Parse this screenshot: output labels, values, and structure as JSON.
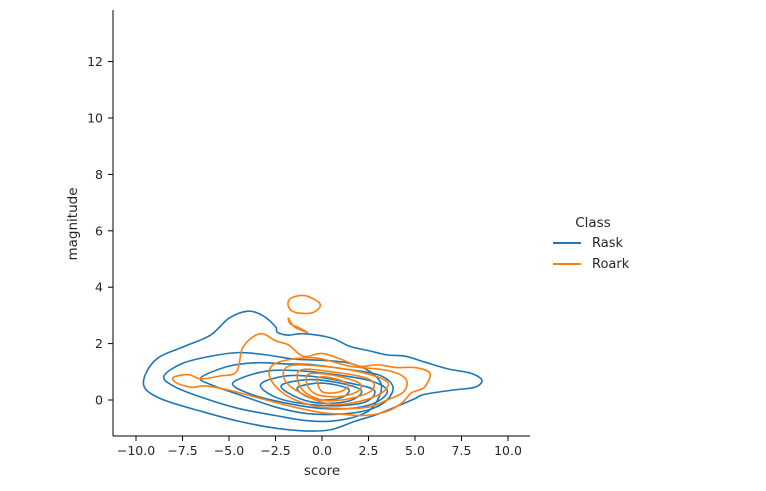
{
  "chart_data": {
    "type": "contour",
    "xlabel": "score",
    "ylabel": "magnitude",
    "xlim": [
      -11.2,
      11.2
    ],
    "ylim": [
      -1.3,
      13.8
    ],
    "x_ticks": [
      -10.0,
      -7.5,
      -5.0,
      -2.5,
      0.0,
      2.5,
      5.0,
      7.5,
      10.0
    ],
    "x_tick_labels": [
      "−10.0",
      "−7.5",
      "−5.0",
      "−2.5",
      "0.0",
      "2.5",
      "5.0",
      "7.5",
      "10.0"
    ],
    "y_ticks": [
      0,
      2,
      4,
      6,
      8,
      10,
      12
    ],
    "y_tick_labels": [
      "0",
      "2",
      "4",
      "6",
      "8",
      "10",
      "12"
    ],
    "grid": false,
    "legend": {
      "title": "Class",
      "placement": "right",
      "entries": [
        {
          "label": "Rask",
          "color": "#1f77b4"
        },
        {
          "label": "Roark",
          "color": "#ff7f0e"
        }
      ]
    },
    "series": [
      {
        "name": "Rask",
        "color": "#1f77b4",
        "contours": [
          [
            [
              -9.5,
              0.9
            ],
            [
              -8.8,
              1.5
            ],
            [
              -7.4,
              1.9
            ],
            [
              -6,
              2.3
            ],
            [
              -5,
              2.9
            ],
            [
              -4,
              3.15
            ],
            [
              -3.2,
              3.0
            ],
            [
              -2.5,
              2.6
            ],
            [
              -2.4,
              2.4
            ],
            [
              -1.8,
              2.3
            ],
            [
              -1,
              2.35
            ],
            [
              0.5,
              2.2
            ],
            [
              1.5,
              1.9
            ],
            [
              2.5,
              1.75
            ],
            [
              3.5,
              1.6
            ],
            [
              4.5,
              1.55
            ],
            [
              5.5,
              1.35
            ],
            [
              6.8,
              1.1
            ],
            [
              8,
              0.95
            ],
            [
              8.6,
              0.7
            ],
            [
              8.2,
              0.45
            ],
            [
              7,
              0.35
            ],
            [
              5.5,
              0.2
            ],
            [
              5,
              0.05
            ],
            [
              4.3,
              -0.15
            ],
            [
              3,
              -0.5
            ],
            [
              1.8,
              -0.75
            ],
            [
              0.5,
              -1.05
            ],
            [
              -0.8,
              -1.1
            ],
            [
              -2.5,
              -1.0
            ],
            [
              -4.5,
              -0.75
            ],
            [
              -6.5,
              -0.4
            ],
            [
              -8.5,
              0.0
            ],
            [
              -9.5,
              0.4
            ]
          ],
          [
            [
              -8.5,
              0.85
            ],
            [
              -7.5,
              1.3
            ],
            [
              -6,
              1.55
            ],
            [
              -4.5,
              1.68
            ],
            [
              -3,
              1.6
            ],
            [
              -1.5,
              1.45
            ],
            [
              0.2,
              1.4
            ],
            [
              1.5,
              1.3
            ],
            [
              2.6,
              1.0
            ],
            [
              3.2,
              0.5
            ],
            [
              2.8,
              -0.2
            ],
            [
              2,
              -0.55
            ],
            [
              0.5,
              -0.75
            ],
            [
              -1,
              -0.72
            ],
            [
              -2.5,
              -0.55
            ],
            [
              -4.5,
              -0.3
            ],
            [
              -6.5,
              0.1
            ],
            [
              -8,
              0.5
            ]
          ],
          [
            [
              -6.5,
              0.8
            ],
            [
              -5,
              1.2
            ],
            [
              -3.5,
              1.32
            ],
            [
              -2,
              1.28
            ],
            [
              -0.5,
              1.25
            ],
            [
              1.2,
              1.1
            ],
            [
              3,
              0.9
            ],
            [
              3.8,
              0.5
            ],
            [
              3.5,
              0.0
            ],
            [
              2.5,
              -0.35
            ],
            [
              1,
              -0.5
            ],
            [
              -0.8,
              -0.48
            ],
            [
              -2.5,
              -0.25
            ],
            [
              -4.5,
              0.2
            ],
            [
              -6,
              0.55
            ]
          ],
          [
            [
              -4.8,
              0.6
            ],
            [
              -3.2,
              1.0
            ],
            [
              -1.5,
              1.05
            ],
            [
              0.5,
              0.92
            ],
            [
              2.5,
              0.7
            ],
            [
              3.5,
              0.35
            ],
            [
              3,
              -0.05
            ],
            [
              1.8,
              -0.28
            ],
            [
              0,
              -0.3
            ],
            [
              -2,
              -0.1
            ],
            [
              -3.8,
              0.2
            ]
          ],
          [
            [
              -3.3,
              0.55
            ],
            [
              -2,
              0.85
            ],
            [
              -0.3,
              0.82
            ],
            [
              1.5,
              0.6
            ],
            [
              2.8,
              0.35
            ],
            [
              2.4,
              -0.05
            ],
            [
              1,
              -0.2
            ],
            [
              -0.8,
              -0.15
            ],
            [
              -2.5,
              0.1
            ]
          ],
          [
            [
              -2.2,
              0.5
            ],
            [
              -0.8,
              0.72
            ],
            [
              0.8,
              0.62
            ],
            [
              2.1,
              0.35
            ],
            [
              1.6,
              0.0
            ],
            [
              0.2,
              -0.12
            ],
            [
              -1.2,
              0.05
            ]
          ],
          [
            [
              -1.3,
              0.45
            ],
            [
              0,
              0.6
            ],
            [
              1.4,
              0.4
            ],
            [
              1.1,
              0.1
            ],
            [
              0,
              0.0
            ],
            [
              -0.9,
              0.15
            ]
          ]
        ]
      },
      {
        "name": "Roark",
        "color": "#ff7f0e",
        "contours": [
          [
            [
              -8,
              0.8
            ],
            [
              -7.2,
              0.9
            ],
            [
              -6.5,
              0.75
            ],
            [
              -5.5,
              0.85
            ],
            [
              -4.6,
              1.0
            ],
            [
              -4.3,
              1.8
            ],
            [
              -3.8,
              2.2
            ],
            [
              -3.2,
              2.35
            ],
            [
              -2.5,
              2.1
            ],
            [
              -1.8,
              1.95
            ],
            [
              -1,
              1.55
            ],
            [
              0,
              1.65
            ],
            [
              1,
              1.45
            ],
            [
              2,
              1.2
            ],
            [
              3,
              1.25
            ],
            [
              4,
              1.15
            ],
            [
              5,
              1.15
            ],
            [
              5.8,
              0.95
            ],
            [
              5.5,
              0.45
            ],
            [
              4.8,
              0.25
            ],
            [
              4.3,
              -0.1
            ],
            [
              3.5,
              -0.4
            ],
            [
              2.3,
              -0.55
            ],
            [
              1,
              -0.5
            ],
            [
              0,
              -0.45
            ],
            [
              -1.5,
              -0.25
            ],
            [
              -3,
              0.0
            ],
            [
              -5,
              0.35
            ],
            [
              -6.3,
              0.5
            ],
            [
              -7,
              0.45
            ],
            [
              -7.8,
              0.6
            ]
          ],
          [
            [
              -2.5,
              1.3
            ],
            [
              -0.5,
              1.5
            ],
            [
              1.5,
              1.2
            ],
            [
              3.5,
              1.05
            ],
            [
              4.5,
              0.75
            ],
            [
              4.4,
              0.3
            ],
            [
              3.5,
              0.0
            ],
            [
              2.5,
              -0.25
            ],
            [
              1,
              -0.3
            ],
            [
              -0.5,
              -0.2
            ],
            [
              -2,
              0.2
            ],
            [
              -2.8,
              0.8
            ]
          ],
          [
            [
              -1.8,
              1.2
            ],
            [
              0,
              1.2
            ],
            [
              2,
              1.0
            ],
            [
              3.5,
              0.65
            ],
            [
              3.2,
              0.25
            ],
            [
              2,
              -0.05
            ],
            [
              0.5,
              -0.15
            ],
            [
              -1,
              0.2
            ],
            [
              -2,
              0.7
            ]
          ],
          [
            [
              -1.2,
              1.05
            ],
            [
              0.5,
              1.0
            ],
            [
              2.5,
              0.75
            ],
            [
              2.7,
              0.35
            ],
            [
              1.5,
              0.05
            ],
            [
              0,
              0.0
            ],
            [
              -1.1,
              0.4
            ]
          ],
          [
            [
              -0.7,
              0.92
            ],
            [
              0.6,
              0.88
            ],
            [
              2,
              0.6
            ],
            [
              1.9,
              0.3
            ],
            [
              0.9,
              0.12
            ],
            [
              -0.3,
              0.2
            ],
            [
              -0.8,
              0.55
            ]
          ],
          [
            [
              -0.2,
              0.8
            ],
            [
              0.9,
              0.72
            ],
            [
              1.4,
              0.5
            ],
            [
              0.9,
              0.28
            ],
            [
              0,
              0.3
            ]
          ],
          [
            [
              -1.8,
              2.9
            ],
            [
              -1.5,
              2.6
            ],
            [
              -0.8,
              2.4
            ],
            [
              -1.2,
              2.55
            ],
            [
              -1.7,
              2.7
            ]
          ],
          [
            [
              -1.7,
              3.6
            ],
            [
              -0.9,
              3.7
            ],
            [
              -0.1,
              3.4
            ],
            [
              -0.5,
              3.1
            ],
            [
              -1.4,
              3.1
            ],
            [
              -1.8,
              3.3
            ]
          ]
        ]
      }
    ]
  }
}
